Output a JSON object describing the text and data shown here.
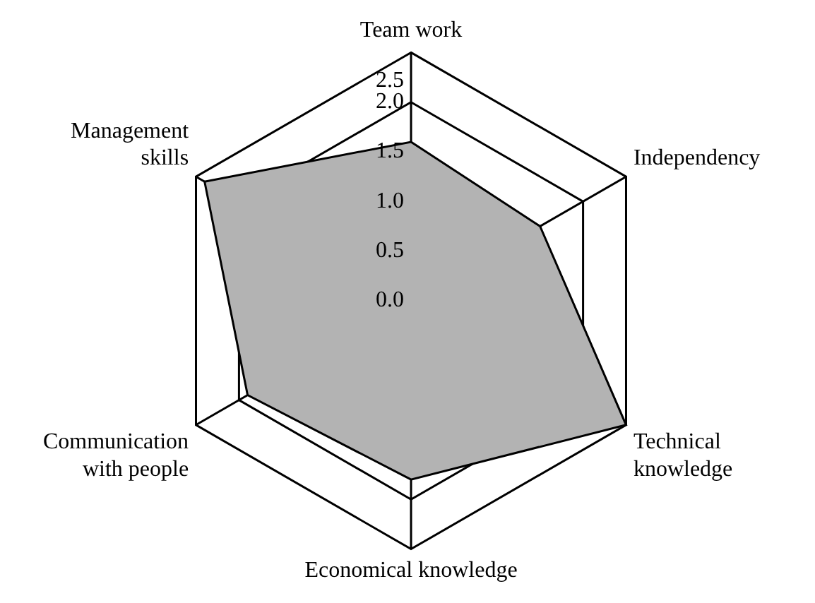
{
  "chart_data": {
    "type": "radar",
    "categories": [
      "Team work",
      "Independency",
      "Technical knowledge",
      "Economical knowledge",
      "Communication with people",
      "Management skills"
    ],
    "series": [
      {
        "color": "#b3b3b3",
        "values": [
          1.6,
          1.5,
          2.5,
          1.8,
          1.9,
          2.4
        ]
      }
    ],
    "ylim": [
      0,
      2.5
    ],
    "yticks": [
      {
        "value": 0,
        "label": "0.0"
      },
      {
        "value": 0.5,
        "label": "0.5"
      },
      {
        "value": 1,
        "label": "1.0"
      },
      {
        "value": 1.5,
        "label": "1.5"
      },
      {
        "value": 2,
        "label": "2.0"
      },
      {
        "value": 2.5,
        "label": "2.5"
      }
    ],
    "grid": true,
    "legend": false
  }
}
